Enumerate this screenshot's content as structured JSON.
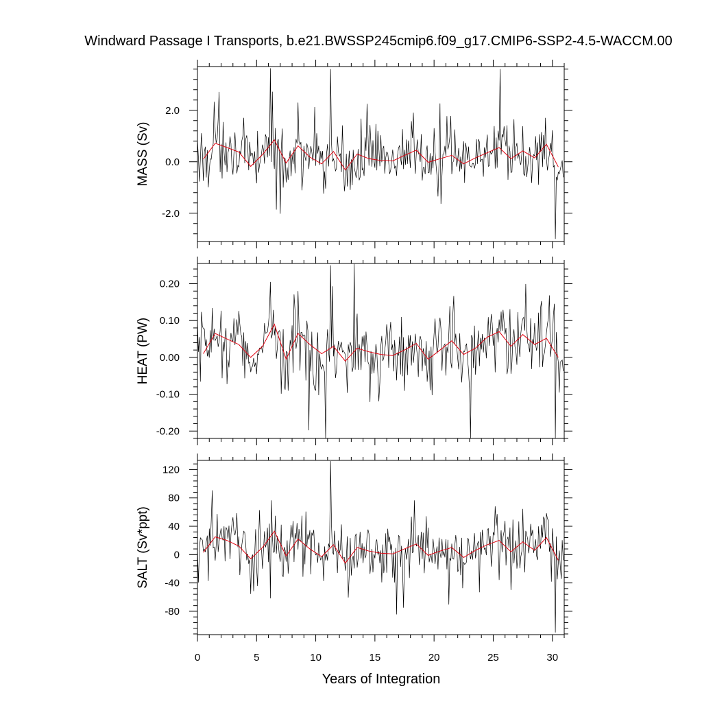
{
  "chart_data": {
    "type": "line",
    "title": "Windward Passage I Transports, b.e21.BWSSP245cmip6.f09_g17.CMIP6-SSP2-4.5-WACCM.00",
    "xlabel": "Years of Integration",
    "xlim": [
      0,
      31
    ],
    "xticks": [
      0,
      5,
      10,
      15,
      20,
      25,
      30
    ],
    "grid": false,
    "panels": [
      {
        "ylabel": "MASS (Sv)",
        "ylim": [
          -3.1,
          3.7
        ],
        "yticks": [
          2.0,
          0.0,
          -2.0
        ],
        "ytick_labels": [
          "2.0",
          "0.0",
          "-2.0"
        ],
        "annual_mean": {
          "x": [
            0.5,
            1.5,
            2.5,
            3.5,
            4.5,
            5.5,
            6.5,
            7.5,
            8.5,
            9.5,
            10.5,
            11.5,
            12.5,
            13.5,
            14.5,
            15.5,
            16.5,
            17.5,
            18.5,
            19.5,
            20.5,
            21.5,
            22.5,
            23.5,
            24.5,
            25.5,
            26.5,
            27.5,
            28.5,
            29.5,
            30.5
          ],
          "y": [
            0.1,
            0.72,
            0.55,
            0.38,
            -0.18,
            0.28,
            0.85,
            -0.05,
            0.62,
            0.18,
            -0.08,
            0.4,
            -0.32,
            0.3,
            0.12,
            0.05,
            0.03,
            0.25,
            0.45,
            -0.02,
            0.12,
            0.25,
            -0.08,
            0.15,
            0.35,
            0.55,
            0.12,
            0.42,
            0.15,
            0.68,
            -0.2
          ]
        },
        "monthly_stats": {
          "mean": 0.2,
          "spread": 0.6,
          "min": -3.0,
          "max": 3.6
        }
      },
      {
        "ylabel": "HEAT (PW)",
        "ylim": [
          -0.22,
          0.255
        ],
        "yticks": [
          0.2,
          0.1,
          0.0,
          -0.1,
          -0.2
        ],
        "ytick_labels": [
          "0.20",
          "0.10",
          "0.00",
          "-0.10",
          "-0.20"
        ],
        "annual_mean": {
          "x": [
            0.5,
            1.5,
            2.5,
            3.5,
            4.5,
            5.5,
            6.5,
            7.5,
            8.5,
            9.5,
            10.5,
            11.5,
            12.5,
            13.5,
            14.5,
            15.5,
            16.5,
            17.5,
            18.5,
            19.5,
            20.5,
            21.5,
            22.5,
            23.5,
            24.5,
            25.5,
            26.5,
            27.5,
            28.5,
            29.5,
            30.5
          ],
          "y": [
            0.01,
            0.065,
            0.05,
            0.035,
            0.0,
            0.03,
            0.09,
            -0.005,
            0.065,
            0.035,
            0.01,
            0.03,
            -0.01,
            0.025,
            0.015,
            0.008,
            0.005,
            0.02,
            0.038,
            -0.005,
            0.02,
            0.045,
            0.008,
            0.025,
            0.055,
            0.07,
            0.03,
            0.062,
            0.035,
            0.052,
            0.0
          ]
        },
        "monthly_stats": {
          "mean": 0.02,
          "spread": 0.05,
          "min": -0.22,
          "max": 0.25
        }
      },
      {
        "ylabel": "SALT (Sv*ppt)",
        "ylim": [
          -113,
          133
        ],
        "yticks": [
          120,
          80,
          40,
          0,
          -40,
          -80
        ],
        "ytick_labels": [
          "120",
          "80",
          "40",
          "0",
          "-40",
          "-80"
        ],
        "annual_mean": {
          "x": [
            0.5,
            1.5,
            2.5,
            3.5,
            4.5,
            5.5,
            6.5,
            7.5,
            8.5,
            9.5,
            10.5,
            11.5,
            12.5,
            13.5,
            14.5,
            15.5,
            16.5,
            17.5,
            18.5,
            19.5,
            20.5,
            21.5,
            22.5,
            23.5,
            24.5,
            25.5,
            26.5,
            27.5,
            28.5,
            29.5,
            30.5
          ],
          "y": [
            3,
            25,
            20,
            12,
            -6,
            10,
            33,
            -2,
            22,
            8,
            -3,
            14,
            -12,
            10,
            5,
            2,
            1,
            8,
            15,
            -1,
            5,
            10,
            -4,
            6,
            14,
            20,
            4,
            18,
            6,
            24,
            -8
          ]
        },
        "monthly_stats": {
          "mean": 8,
          "spread": 22,
          "min": -110,
          "max": 132
        }
      }
    ],
    "series_colors": {
      "monthly": "#000000",
      "annual_mean": "#e0000e"
    }
  }
}
